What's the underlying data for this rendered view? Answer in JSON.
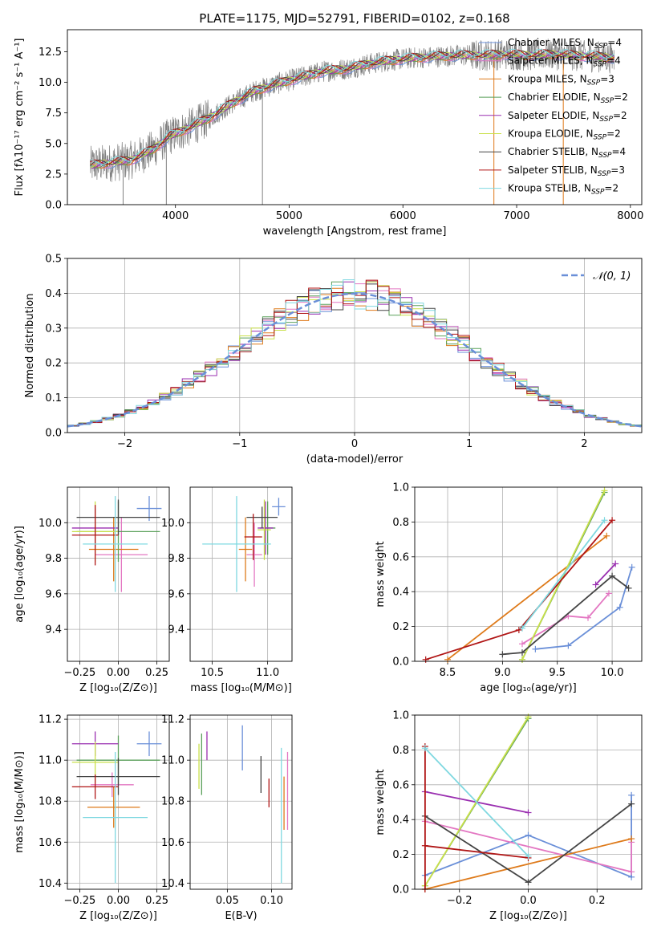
{
  "title": "PLATE=1175, MJD=52791, FIBERID=0102, z=0.168",
  "models": [
    {
      "name": "Chabrier MILES",
      "nssp": 4,
      "color": "#6a8fd8"
    },
    {
      "name": "Salpeter MILES",
      "nssp": 4,
      "color": "#e377c2"
    },
    {
      "name": "Kroupa MILES",
      "nssp": 3,
      "color": "#de7a1a"
    },
    {
      "name": "Chabrier ELODIE",
      "nssp": 2,
      "color": "#5aa05a"
    },
    {
      "name": "Salpeter ELODIE",
      "nssp": 2,
      "color": "#9a2fb0"
    },
    {
      "name": "Kroupa ELODIE",
      "nssp": 2,
      "color": "#c9e04a"
    },
    {
      "name": "Chabrier STELIB",
      "nssp": 4,
      "color": "#444444"
    },
    {
      "name": "Salpeter STELIB",
      "nssp": 3,
      "color": "#b01515"
    },
    {
      "name": "Kroupa STELIB",
      "nssp": 2,
      "color": "#7fd8e0"
    }
  ],
  "legend_nssp_prefix": "N",
  "legend_nssp_sub": "SSP",
  "legend_nssp_eq": "=",
  "gauss_label": "𝒩(0, 1)",
  "chart_data": [
    {
      "id": "spectrum",
      "type": "line",
      "title": "PLATE=1175, MJD=52791, FIBERID=0102, z=0.168",
      "xlabel": "wavelength [Angstrom, rest frame]",
      "ylabel": "Flux [fλ10⁻¹⁷ erg cm⁻² s⁻¹ A⁻¹]",
      "xlim": [
        3050,
        8100
      ],
      "ylim": [
        0,
        14.3
      ],
      "xticks": [
        4000,
        5000,
        6000,
        7000,
        8000
      ],
      "yticks": [
        0.0,
        2.5,
        5.0,
        7.5,
        10.0,
        12.5
      ],
      "data_color": "#808080",
      "continuum": {
        "x": [
          3250,
          3400,
          3600,
          3800,
          3950,
          4100,
          4300,
          4500,
          4700,
          4900,
          5100,
          5300,
          5500,
          5700,
          5900,
          6100,
          6300,
          6500,
          6700,
          6900,
          7100,
          7300,
          7500,
          7700,
          7850
        ],
        "y": [
          3.2,
          3.4,
          3.6,
          4.5,
          5.6,
          6.2,
          7.1,
          8.3,
          9.3,
          9.9,
          10.4,
          10.9,
          11.1,
          11.5,
          11.8,
          12.0,
          12.1,
          12.2,
          12.2,
          12.3,
          12.2,
          12.3,
          12.2,
          12.1,
          12.0
        ]
      }
    },
    {
      "id": "residuals",
      "type": "line",
      "xlabel": "(data-model)/error",
      "ylabel": "Normed distribution",
      "xlim": [
        -2.5,
        2.5
      ],
      "ylim": [
        0,
        0.5
      ],
      "xticks": [
        -2,
        -1,
        0,
        1,
        2
      ],
      "yticks": [
        0.0,
        0.1,
        0.2,
        0.3,
        0.4,
        0.5
      ],
      "series": [
        {
          "name": "𝒩(0, 1)",
          "type": "gaussian",
          "mean": 0,
          "sigma": 1
        }
      ]
    },
    {
      "id": "age_vs_Z",
      "type": "scatter",
      "xlabel": "Z [log₁₀(Z/Z⊙)]",
      "ylabel": "age  [log₁₀(age/yr)]",
      "xlim": [
        -0.33,
        0.33
      ],
      "ylim": [
        9.22,
        10.2
      ],
      "xticks": [
        "-0.25",
        "0.00",
        "0.25"
      ],
      "xtick_vals": [
        -0.25,
        0,
        0.25
      ],
      "yticks": [
        "9.4",
        "9.6",
        "9.8",
        "10.0"
      ],
      "ytick_vals": [
        9.4,
        9.6,
        9.8,
        10.0
      ],
      "points": [
        {
          "model": 0,
          "x": 0.2,
          "y": 10.08,
          "xerr": 0.08,
          "yerr": 0.07
        },
        {
          "model": 1,
          "x": 0.02,
          "y": 9.82,
          "xerr": 0.17,
          "yerr": 0.21
        },
        {
          "model": 2,
          "x": -0.03,
          "y": 9.85,
          "xerr": 0.16,
          "yerr": 0.18
        },
        {
          "model": 3,
          "x": 0.0,
          "y": 9.95,
          "xerr": 0.27,
          "yerr": 0.17
        },
        {
          "model": 4,
          "x": -0.15,
          "y": 9.97,
          "xerr": 0.15,
          "yerr": 0.11
        },
        {
          "model": 5,
          "x": -0.15,
          "y": 9.95,
          "xerr": 0.15,
          "yerr": 0.17
        },
        {
          "model": 6,
          "x": 0.0,
          "y": 10.03,
          "xerr": 0.27,
          "yerr": 0.1
        },
        {
          "model": 7,
          "x": -0.15,
          "y": 9.93,
          "xerr": 0.15,
          "yerr": 0.17
        },
        {
          "model": 8,
          "x": -0.02,
          "y": 9.88,
          "xerr": 0.21,
          "yerr": 0.27
        }
      ]
    },
    {
      "id": "age_vs_mass",
      "type": "scatter",
      "xlabel": "mass [log₁₀(M/M⊙)]",
      "ylabel": "",
      "xlim": [
        10.3,
        11.22
      ],
      "ylim": [
        9.22,
        10.2
      ],
      "xticks": [
        "10.5",
        "11.0"
      ],
      "xtick_vals": [
        10.5,
        11.0
      ],
      "yticks": [
        "9.4",
        "9.6",
        "9.8",
        "10.0"
      ],
      "ytick_vals": [
        9.4,
        9.6,
        9.8,
        10.0
      ],
      "points": [
        {
          "model": 0,
          "x": 11.1,
          "y": 10.09,
          "xerr": 0.06,
          "yerr": 0.05
        },
        {
          "model": 1,
          "x": 10.88,
          "y": 9.82,
          "xerr": 0.07,
          "yerr": 0.18
        },
        {
          "model": 2,
          "x": 10.8,
          "y": 9.85,
          "xerr": 0.06,
          "yerr": 0.18
        },
        {
          "model": 3,
          "x": 11.0,
          "y": 9.97,
          "xerr": 0.07,
          "yerr": 0.15
        },
        {
          "model": 4,
          "x": 10.98,
          "y": 9.97,
          "xerr": 0.07,
          "yerr": 0.15
        },
        {
          "model": 5,
          "x": 10.97,
          "y": 9.96,
          "xerr": 0.06,
          "yerr": 0.17
        },
        {
          "model": 6,
          "x": 10.95,
          "y": 10.03,
          "xerr": 0.14,
          "yerr": 0.06
        },
        {
          "model": 7,
          "x": 10.87,
          "y": 9.92,
          "xerr": 0.08,
          "yerr": 0.13
        },
        {
          "model": 8,
          "x": 10.72,
          "y": 9.88,
          "xerr": 0.31,
          "yerr": 0.27
        }
      ]
    },
    {
      "id": "weight_vs_age",
      "type": "line",
      "xlabel": "age  [log₁₀(age/yr)]",
      "ylabel": "mass weight",
      "xlim": [
        8.2,
        10.27
      ],
      "ylim": [
        0,
        1.0
      ],
      "xticks": [
        "8.5",
        "9.0",
        "9.5",
        "10.0"
      ],
      "xtick_vals": [
        8.5,
        9.0,
        9.5,
        10.0
      ],
      "yticks": [
        "0.0",
        "0.2",
        "0.4",
        "0.6",
        "0.8",
        "1.0"
      ],
      "ytick_vals": [
        0,
        0.2,
        0.4,
        0.6,
        0.8,
        1.0
      ],
      "series": [
        {
          "model": 0,
          "x": [
            9.3,
            9.6,
            10.07,
            10.18
          ],
          "y": [
            0.07,
            0.09,
            0.31,
            0.54
          ]
        },
        {
          "model": 1,
          "x": [
            9.18,
            9.6,
            9.78,
            9.97
          ],
          "y": [
            0.1,
            0.26,
            0.25,
            0.39
          ]
        },
        {
          "model": 2,
          "x": [
            8.5,
            9.95
          ],
          "y": [
            0.01,
            0.72
          ]
        },
        {
          "model": 3,
          "x": [
            9.18,
            9.93
          ],
          "y": [
            0.01,
            0.97
          ]
        },
        {
          "model": 4,
          "x": [
            9.85,
            10.03
          ],
          "y": [
            0.44,
            0.56
          ]
        },
        {
          "model": 5,
          "x": [
            9.18,
            9.93
          ],
          "y": [
            0.01,
            0.98
          ]
        },
        {
          "model": 6,
          "x": [
            9.0,
            9.18,
            10.0,
            10.15
          ],
          "y": [
            0.04,
            0.05,
            0.49,
            0.42
          ]
        },
        {
          "model": 7,
          "x": [
            8.3,
            9.15,
            10.0
          ],
          "y": [
            0.01,
            0.18,
            0.81
          ]
        },
        {
          "model": 8,
          "x": [
            9.18,
            9.93
          ],
          "y": [
            0.19,
            0.81
          ]
        }
      ]
    },
    {
      "id": "mass_vs_Z",
      "type": "scatter",
      "xlabel": "Z [log₁₀(Z/Z⊙)]",
      "ylabel": "mass [log₁₀(M/M⊙)]",
      "xlim": [
        -0.33,
        0.33
      ],
      "ylim": [
        10.37,
        11.22
      ],
      "xticks": [
        "-0.25",
        "0.00",
        "0.25"
      ],
      "xtick_vals": [
        -0.25,
        0,
        0.25
      ],
      "yticks": [
        "10.4",
        "10.6",
        "10.8",
        "11.0",
        "11.2"
      ],
      "ytick_vals": [
        10.4,
        10.6,
        10.8,
        11.0,
        11.2
      ],
      "points": [
        {
          "model": 0,
          "x": 0.2,
          "y": 11.08,
          "xerr": 0.08,
          "yerr": 0.06
        },
        {
          "model": 1,
          "x": -0.04,
          "y": 10.88,
          "xerr": 0.14,
          "yerr": 0.06
        },
        {
          "model": 2,
          "x": -0.03,
          "y": 10.77,
          "xerr": 0.17,
          "yerr": 0.1
        },
        {
          "model": 3,
          "x": 0.0,
          "y": 11.0,
          "xerr": 0.27,
          "yerr": 0.12
        },
        {
          "model": 4,
          "x": -0.15,
          "y": 11.08,
          "xerr": 0.15,
          "yerr": 0.06
        },
        {
          "model": 5,
          "x": -0.15,
          "y": 10.99,
          "xerr": 0.15,
          "yerr": 0.1
        },
        {
          "model": 6,
          "x": 0.0,
          "y": 10.92,
          "xerr": 0.27,
          "yerr": 0.09
        },
        {
          "model": 7,
          "x": -0.15,
          "y": 10.87,
          "xerr": 0.15,
          "yerr": 0.06
        },
        {
          "model": 8,
          "x": -0.02,
          "y": 10.72,
          "xerr": 0.21,
          "yerr": 0.32
        }
      ]
    },
    {
      "id": "mass_vs_ebv",
      "type": "scatter",
      "xlabel": "E(B-V)",
      "ylabel": "",
      "xlim": [
        0.008,
        0.123
      ],
      "ylim": [
        10.37,
        11.22
      ],
      "xticks": [
        "0.05",
        "0.10"
      ],
      "xtick_vals": [
        0.05,
        0.1
      ],
      "yticks": [
        "10.4",
        "10.6",
        "10.8",
        "11.0",
        "11.2"
      ],
      "ytick_vals": [
        10.4,
        10.6,
        10.8,
        11.0,
        11.2
      ],
      "points": [
        {
          "model": 0,
          "x": 0.067,
          "y": 11.06,
          "xerr": 0,
          "yerr": 0.11
        },
        {
          "model": 1,
          "x": 0.118,
          "y": 10.85,
          "xerr": 0,
          "yerr": 0.19
        },
        {
          "model": 2,
          "x": 0.114,
          "y": 10.79,
          "xerr": 0,
          "yerr": 0.13
        },
        {
          "model": 3,
          "x": 0.021,
          "y": 10.98,
          "xerr": 0,
          "yerr": 0.15
        },
        {
          "model": 4,
          "x": 0.027,
          "y": 11.07,
          "xerr": 0,
          "yerr": 0.07
        },
        {
          "model": 5,
          "x": 0.018,
          "y": 10.97,
          "xerr": 0,
          "yerr": 0.11
        },
        {
          "model": 6,
          "x": 0.088,
          "y": 10.93,
          "xerr": 0,
          "yerr": 0.09
        },
        {
          "model": 7,
          "x": 0.097,
          "y": 10.84,
          "xerr": 0,
          "yerr": 0.07
        },
        {
          "model": 8,
          "x": 0.111,
          "y": 10.73,
          "xerr": 0,
          "yerr": 0.33
        }
      ]
    },
    {
      "id": "weight_vs_Z",
      "type": "line",
      "xlabel": "Z [log₁₀(Z/Z⊙)]",
      "ylabel": "mass weight",
      "xlim": [
        -0.33,
        0.33
      ],
      "ylim": [
        0,
        1.0
      ],
      "xticks": [
        "-0.2",
        "0.0",
        "0.2"
      ],
      "xtick_vals": [
        -0.2,
        0.0,
        0.2
      ],
      "yticks": [
        "0.0",
        "0.2",
        "0.4",
        "0.6",
        "0.8",
        "1.0"
      ],
      "ytick_vals": [
        0,
        0.2,
        0.4,
        0.6,
        0.8,
        1.0
      ],
      "series": [
        {
          "model": 0,
          "x": [
            -0.3,
            0.0,
            0.3,
            0.3
          ],
          "y": [
            0.08,
            0.31,
            0.07,
            0.54
          ]
        },
        {
          "model": 1,
          "x": [
            -0.3,
            0.3,
            0.3
          ],
          "y": [
            0.39,
            0.1,
            0.27
          ]
        },
        {
          "model": 2,
          "x": [
            -0.3,
            0.3
          ],
          "y": [
            0.0,
            0.29
          ]
        },
        {
          "model": 3,
          "x": [
            -0.3,
            0.0
          ],
          "y": [
            0.02,
            0.98
          ]
        },
        {
          "model": 4,
          "x": [
            -0.3,
            0.0
          ],
          "y": [
            0.56,
            0.44
          ]
        },
        {
          "model": 5,
          "x": [
            -0.3,
            0.0
          ],
          "y": [
            0.02,
            0.99
          ]
        },
        {
          "model": 6,
          "x": [
            -0.3,
            0.0,
            0.3
          ],
          "y": [
            0.42,
            0.04,
            0.49
          ]
        },
        {
          "model": 7,
          "x": [
            -0.3,
            -0.3,
            -0.3,
            0.0
          ],
          "y": [
            0.82,
            0.0,
            0.25,
            0.18
          ]
        },
        {
          "model": 8,
          "x": [
            -0.3,
            0.0
          ],
          "y": [
            0.81,
            0.19
          ]
        }
      ]
    }
  ]
}
